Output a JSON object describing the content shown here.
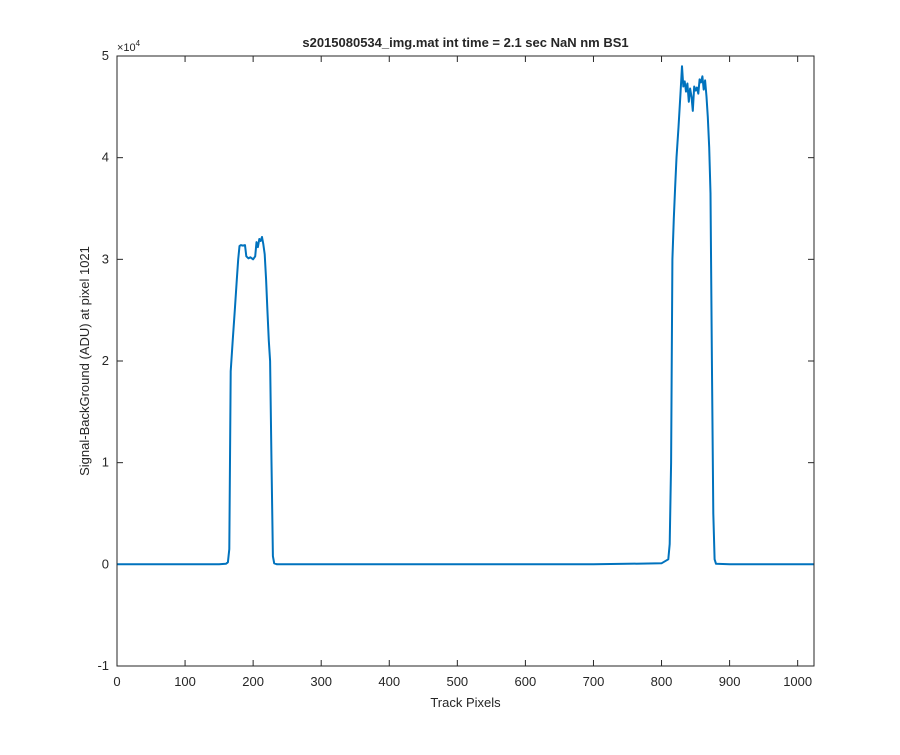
{
  "figure": {
    "title": "s2015080534_img.mat int time = 2.1 sec  NaN nm BS1"
  },
  "chart_data": {
    "type": "line",
    "title": "s2015080534_img.mat int time = 2.1 sec  NaN nm BS1",
    "xlabel": "Track Pixels",
    "ylabel": "Signal-BackGround (ADU) at pixel 1021",
    "xlim": [
      0,
      1024
    ],
    "ylim": [
      -10000,
      50000
    ],
    "y_exponent_label": "×10",
    "y_exponent_power": "4",
    "x_ticks": [
      0,
      100,
      200,
      300,
      400,
      500,
      600,
      700,
      800,
      900,
      1000
    ],
    "x_tick_labels": [
      "0",
      "100",
      "200",
      "300",
      "400",
      "500",
      "600",
      "700",
      "800",
      "900",
      "1000"
    ],
    "y_ticks": [
      -10000,
      0,
      10000,
      20000,
      30000,
      40000,
      50000
    ],
    "y_tick_labels": [
      "-1",
      "0",
      "1",
      "2",
      "3",
      "4",
      "5"
    ],
    "grid": false,
    "box": true,
    "series_color": "#0072BD",
    "series": [
      {
        "x": [
          0,
          50,
          100,
          150,
          160,
          163,
          165,
          167,
          170,
          173,
          176,
          178,
          180,
          182,
          185,
          188,
          190,
          193,
          196,
          200,
          203,
          205,
          207,
          209,
          211,
          213,
          215,
          217,
          219,
          221,
          223,
          225,
          227,
          229,
          231,
          235,
          300,
          400,
          500,
          600,
          700,
          800,
          810,
          812,
          814,
          816,
          818,
          820,
          822,
          825,
          828,
          830,
          832,
          834,
          836,
          838,
          840,
          842,
          844,
          846,
          848,
          850,
          852,
          854,
          856,
          858,
          860,
          862,
          864,
          866,
          868,
          870,
          872,
          874,
          876,
          878,
          880,
          900,
          1000,
          1024
        ],
        "y": [
          0,
          0,
          0,
          0,
          50,
          200,
          1500,
          19000,
          22000,
          25000,
          28000,
          30000,
          31300,
          31400,
          31350,
          31400,
          30300,
          30100,
          30200,
          30000,
          30300,
          31700,
          31200,
          32000,
          31800,
          32200,
          31500,
          30500,
          28000,
          25000,
          22000,
          20000,
          10000,
          800,
          100,
          0,
          0,
          0,
          0,
          0,
          0,
          100,
          500,
          2000,
          10000,
          30000,
          34000,
          37000,
          40000,
          43000,
          46500,
          49000,
          47000,
          47500,
          46500,
          47300,
          45500,
          46800,
          46000,
          44600,
          47000,
          46600,
          46900,
          46300,
          47700,
          47400,
          48000,
          46700,
          47600,
          46000,
          44000,
          41000,
          36500,
          20000,
          5000,
          500,
          50,
          0,
          0,
          0
        ]
      }
    ]
  }
}
